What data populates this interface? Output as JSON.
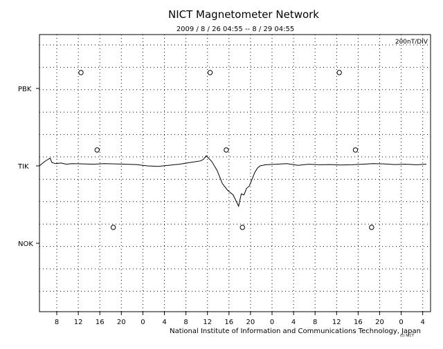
{
  "chart_data": {
    "type": "line",
    "title": "NICT Magnetometer Network",
    "subtitle": "2009 / 8 / 26   04:55 --  8 / 29   04:55",
    "scale_label": "200nT/DIV",
    "footer": "National Institute of Information and Communications Technology, Japan",
    "footer_mark": "(c) NICT",
    "grid": true,
    "x_tick_labels": [
      "8",
      "12",
      "16",
      "20",
      "0",
      "4",
      "8",
      "12",
      "16",
      "20",
      "0",
      "4",
      "8",
      "12",
      "16",
      "20",
      "0",
      "4"
    ],
    "x_range_hours": [
      0,
      72
    ],
    "stations": [
      "PBK",
      "TIK",
      "NOK"
    ],
    "y_unit_nT_per_div": 200,
    "series": [
      {
        "name": "TIK",
        "x_hours": [
          0,
          1,
          2,
          2.3,
          3,
          4,
          5,
          6,
          8,
          10,
          12,
          14,
          16,
          18,
          20,
          22,
          24,
          25,
          26,
          28,
          30,
          30.5,
          31,
          32,
          33,
          34,
          35,
          36,
          37,
          37.5,
          38,
          38.5,
          39,
          39.5,
          40,
          40.5,
          41,
          42,
          44,
          46,
          48,
          50,
          52,
          54,
          56,
          58,
          60,
          62,
          64,
          66,
          68,
          70,
          72
        ],
        "values_nT": [
          0,
          40,
          70,
          30,
          20,
          25,
          15,
          20,
          18,
          15,
          20,
          18,
          15,
          12,
          0,
          -5,
          5,
          10,
          15,
          30,
          45,
          60,
          90,
          40,
          -40,
          -160,
          -220,
          -260,
          -360,
          -250,
          -260,
          -200,
          -180,
          -120,
          -60,
          -20,
          0,
          10,
          15,
          20,
          5,
          15,
          10,
          12,
          8,
          10,
          15,
          20,
          18,
          12,
          15,
          10,
          15
        ]
      }
    ],
    "markers": [
      {
        "station": "PBK",
        "x_hours": [
          4.5,
          28.5,
          52.5
        ]
      },
      {
        "station": "TIK",
        "x_hours": [
          7.5,
          31.5,
          55.5
        ]
      },
      {
        "station": "NOK",
        "x_hours": [
          10.5,
          34.5,
          58.5
        ]
      }
    ]
  }
}
